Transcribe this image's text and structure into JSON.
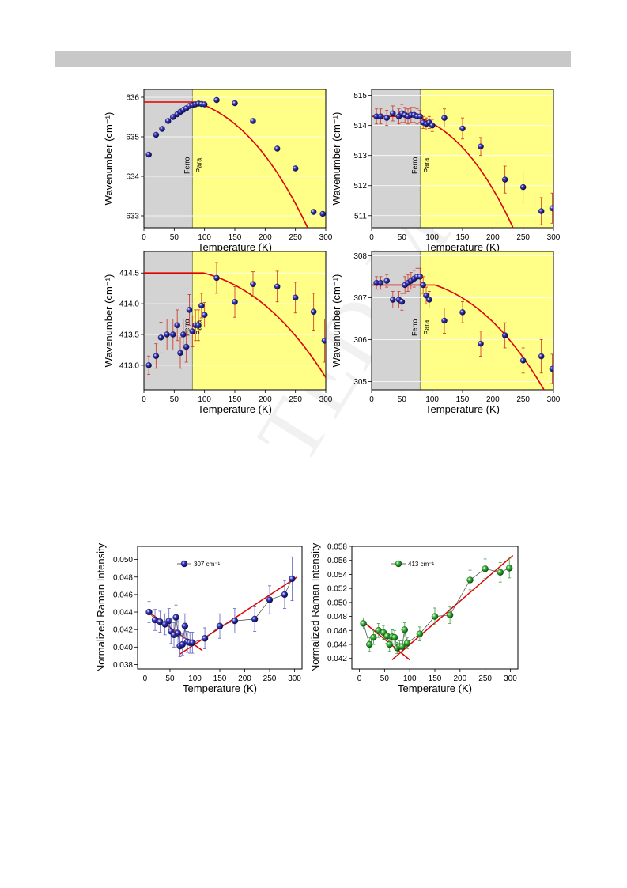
{
  "page": {
    "watermark": "TED M"
  },
  "chart_data": [
    {
      "type": "scatter",
      "panel": "top-left",
      "xlabel": "Temperature (K)",
      "ylabel": "Wavenumber (cm⁻¹)",
      "xlim": [
        0,
        300
      ],
      "ylim": [
        632.7,
        636.2
      ],
      "xticks": [
        0,
        50,
        100,
        150,
        200,
        250,
        300
      ],
      "yticks": [
        633,
        634,
        635,
        636
      ],
      "regions": {
        "boundary": 80,
        "left_label": "Ferro",
        "right_label": "Para",
        "left_color": "#d3d3d3",
        "right_color": "#ffff88"
      },
      "points": [
        {
          "x": 8,
          "y": 634.55,
          "err": 0
        },
        {
          "x": 20,
          "y": 635.05,
          "err": 0
        },
        {
          "x": 30,
          "y": 635.2,
          "err": 0
        },
        {
          "x": 40,
          "y": 635.4,
          "err": 0
        },
        {
          "x": 48,
          "y": 635.5,
          "err": 0
        },
        {
          "x": 55,
          "y": 635.57,
          "err": 0
        },
        {
          "x": 60,
          "y": 635.63,
          "err": 0
        },
        {
          "x": 65,
          "y": 635.68,
          "err": 0
        },
        {
          "x": 70,
          "y": 635.72,
          "err": 0
        },
        {
          "x": 75,
          "y": 635.78,
          "err": 0
        },
        {
          "x": 80,
          "y": 635.8,
          "err": 0
        },
        {
          "x": 85,
          "y": 635.82,
          "err": 0
        },
        {
          "x": 90,
          "y": 635.84,
          "err": 0
        },
        {
          "x": 95,
          "y": 635.83,
          "err": 0
        },
        {
          "x": 100,
          "y": 635.82,
          "err": 0
        },
        {
          "x": 120,
          "y": 635.93,
          "err": 0
        },
        {
          "x": 150,
          "y": 635.85,
          "err": 0
        },
        {
          "x": 180,
          "y": 635.4,
          "err": 0
        },
        {
          "x": 220,
          "y": 634.7,
          "err": 0
        },
        {
          "x": 250,
          "y": 634.2,
          "err": 0
        },
        {
          "x": 280,
          "y": 633.1,
          "err": 0
        },
        {
          "x": 295,
          "y": 633.05,
          "err": 0
        }
      ],
      "fit": {
        "x0": 636.05,
        "c": 4.4,
        "t": 480,
        "flat": 635.88
      }
    },
    {
      "type": "scatter",
      "panel": "top-right",
      "xlabel": "Temperature (K)",
      "ylabel": "Wavenumber (cm⁻¹)",
      "xlim": [
        0,
        300
      ],
      "ylim": [
        510.6,
        515.2
      ],
      "xticks": [
        0,
        50,
        100,
        150,
        200,
        250,
        300
      ],
      "yticks": [
        511,
        512,
        513,
        514,
        515
      ],
      "regions": {
        "boundary": 80,
        "left_label": "Ferro",
        "right_label": "Para",
        "left_color": "#d3d3d3",
        "right_color": "#ffff88"
      },
      "points": [
        {
          "x": 8,
          "y": 514.3,
          "err": 0.25
        },
        {
          "x": 15,
          "y": 514.3,
          "err": 0.25
        },
        {
          "x": 25,
          "y": 514.25,
          "err": 0.25
        },
        {
          "x": 35,
          "y": 514.4,
          "err": 0.25
        },
        {
          "x": 45,
          "y": 514.3,
          "err": 0.25
        },
        {
          "x": 50,
          "y": 514.4,
          "err": 0.3
        },
        {
          "x": 55,
          "y": 514.35,
          "err": 0.25
        },
        {
          "x": 60,
          "y": 514.3,
          "err": 0.25
        },
        {
          "x": 65,
          "y": 514.35,
          "err": 0.25
        },
        {
          "x": 70,
          "y": 514.35,
          "err": 0.25
        },
        {
          "x": 75,
          "y": 514.3,
          "err": 0.25
        },
        {
          "x": 80,
          "y": 514.3,
          "err": 0.2
        },
        {
          "x": 85,
          "y": 514.1,
          "err": 0.2
        },
        {
          "x": 90,
          "y": 514.05,
          "err": 0.2
        },
        {
          "x": 95,
          "y": 514.1,
          "err": 0.2
        },
        {
          "x": 100,
          "y": 514.0,
          "err": 0.2
        },
        {
          "x": 120,
          "y": 514.25,
          "err": 0.3
        },
        {
          "x": 150,
          "y": 513.9,
          "err": 0.35
        },
        {
          "x": 180,
          "y": 513.3,
          "err": 0.3
        },
        {
          "x": 220,
          "y": 512.2,
          "err": 0.45
        },
        {
          "x": 250,
          "y": 511.95,
          "err": 0.5
        },
        {
          "x": 280,
          "y": 511.15,
          "err": 0.45
        },
        {
          "x": 298,
          "y": 511.25,
          "err": 0.5
        }
      ],
      "fit": {
        "x0": 514.5,
        "c": 7.5,
        "t": 480,
        "flat": 514.3
      }
    },
    {
      "type": "scatter",
      "panel": "bottom-left",
      "xlabel": "Temperature (K)",
      "ylabel": "Wavenumber (cm⁻¹)",
      "xlim": [
        0,
        300
      ],
      "ylim": [
        412.6,
        414.85
      ],
      "xticks": [
        0,
        50,
        100,
        150,
        200,
        250,
        300
      ],
      "yticks": [
        413.0,
        413.5,
        414.0,
        414.5
      ],
      "regions": {
        "boundary": 80,
        "left_label": "Ferro",
        "right_label": "Para",
        "left_color": "#d3d3d3",
        "right_color": "#ffff88"
      },
      "points": [
        {
          "x": 8,
          "y": 413.0,
          "err": 0.15
        },
        {
          "x": 20,
          "y": 413.15,
          "err": 0.2
        },
        {
          "x": 28,
          "y": 413.45,
          "err": 0.25
        },
        {
          "x": 38,
          "y": 413.5,
          "err": 0.25
        },
        {
          "x": 48,
          "y": 413.5,
          "err": 0.25
        },
        {
          "x": 55,
          "y": 413.65,
          "err": 0.25
        },
        {
          "x": 60,
          "y": 413.2,
          "err": 0.25
        },
        {
          "x": 65,
          "y": 413.5,
          "err": 0.25
        },
        {
          "x": 70,
          "y": 413.3,
          "err": 0.25
        },
        {
          "x": 75,
          "y": 413.9,
          "err": 0.25
        },
        {
          "x": 80,
          "y": 413.55,
          "err": 0.25
        },
        {
          "x": 85,
          "y": 413.65,
          "err": 0.25
        },
        {
          "x": 90,
          "y": 413.65,
          "err": 0.25
        },
        {
          "x": 95,
          "y": 413.97,
          "err": 0.2
        },
        {
          "x": 100,
          "y": 413.82,
          "err": 0.2
        },
        {
          "x": 120,
          "y": 414.42,
          "err": 0.25
        },
        {
          "x": 150,
          "y": 414.03,
          "err": 0.25
        },
        {
          "x": 180,
          "y": 414.32,
          "err": 0.2
        },
        {
          "x": 220,
          "y": 414.28,
          "err": 0.25
        },
        {
          "x": 250,
          "y": 414.1,
          "err": 0.25
        },
        {
          "x": 280,
          "y": 413.87,
          "err": 0.3
        },
        {
          "x": 298,
          "y": 413.4,
          "err": 0.35
        }
      ],
      "fit": {
        "x0": 414.6,
        "c": 1.8,
        "t": 480,
        "flat": 414.5
      }
    },
    {
      "type": "scatter",
      "panel": "bottom-right",
      "xlabel": "Temperature (K)",
      "ylabel": "Wavenumber (cm⁻¹)",
      "xlim": [
        0,
        300
      ],
      "ylim": [
        304.8,
        308.1
      ],
      "xticks": [
        0,
        50,
        100,
        150,
        200,
        250,
        300
      ],
      "yticks": [
        305,
        306,
        307,
        308
      ],
      "regions": {
        "boundary": 80,
        "left_label": "Ferro",
        "right_label": "Para",
        "left_color": "#d3d3d3",
        "right_color": "#ffff88"
      },
      "points": [
        {
          "x": 8,
          "y": 307.35,
          "err": 0.15
        },
        {
          "x": 15,
          "y": 307.35,
          "err": 0.15
        },
        {
          "x": 25,
          "y": 307.4,
          "err": 0.15
        },
        {
          "x": 35,
          "y": 306.95,
          "err": 0.2
        },
        {
          "x": 45,
          "y": 306.95,
          "err": 0.2
        },
        {
          "x": 50,
          "y": 306.9,
          "err": 0.2
        },
        {
          "x": 55,
          "y": 307.3,
          "err": 0.2
        },
        {
          "x": 60,
          "y": 307.35,
          "err": 0.2
        },
        {
          "x": 65,
          "y": 307.4,
          "err": 0.2
        },
        {
          "x": 70,
          "y": 307.45,
          "err": 0.2
        },
        {
          "x": 75,
          "y": 307.5,
          "err": 0.2
        },
        {
          "x": 80,
          "y": 307.5,
          "err": 0.2
        },
        {
          "x": 85,
          "y": 307.3,
          "err": 0.2
        },
        {
          "x": 90,
          "y": 307.05,
          "err": 0.2
        },
        {
          "x": 95,
          "y": 306.95,
          "err": 0.2
        },
        {
          "x": 120,
          "y": 306.45,
          "err": 0.3
        },
        {
          "x": 150,
          "y": 306.65,
          "err": 0.25
        },
        {
          "x": 180,
          "y": 305.9,
          "err": 0.3
        },
        {
          "x": 220,
          "y": 306.1,
          "err": 0.3
        },
        {
          "x": 250,
          "y": 305.5,
          "err": 0.3
        },
        {
          "x": 280,
          "y": 305.6,
          "err": 0.4
        },
        {
          "x": 298,
          "y": 305.3,
          "err": 0.35
        }
      ],
      "fit": {
        "x0": 307.5,
        "c": 3.1,
        "t": 480,
        "flat": 307.3
      }
    },
    {
      "type": "line",
      "panel": "intensity-left",
      "xlabel": "Temperature (K)",
      "ylabel": "Normalized Raman Intensity",
      "xlim": [
        -15,
        315
      ],
      "ylim": [
        0.0375,
        0.0515
      ],
      "xticks": [
        0,
        50,
        100,
        150,
        200,
        250,
        300
      ],
      "yticks": [
        0.038,
        0.04,
        0.042,
        0.044,
        0.046,
        0.048,
        0.05
      ],
      "series": [
        {
          "name": "307 cm⁻¹",
          "color": "#1a1a8c"
        }
      ],
      "points": [
        {
          "x": 8,
          "y": 0.044,
          "err": 0.0012
        },
        {
          "x": 20,
          "y": 0.0431,
          "err": 0.0012
        },
        {
          "x": 30,
          "y": 0.0429,
          "err": 0.0012
        },
        {
          "x": 40,
          "y": 0.0426,
          "err": 0.0012
        },
        {
          "x": 48,
          "y": 0.043,
          "err": 0.0014
        },
        {
          "x": 52,
          "y": 0.0418,
          "err": 0.0014
        },
        {
          "x": 58,
          "y": 0.0414,
          "err": 0.0014
        },
        {
          "x": 62,
          "y": 0.0434,
          "err": 0.0014
        },
        {
          "x": 66,
          "y": 0.0416,
          "err": 0.0014
        },
        {
          "x": 70,
          "y": 0.0401,
          "err": 0.0012
        },
        {
          "x": 75,
          "y": 0.0403,
          "err": 0.0012
        },
        {
          "x": 80,
          "y": 0.0424,
          "err": 0.0014
        },
        {
          "x": 85,
          "y": 0.0406,
          "err": 0.0012
        },
        {
          "x": 90,
          "y": 0.0405,
          "err": 0.0012
        },
        {
          "x": 95,
          "y": 0.0405,
          "err": 0.0012
        },
        {
          "x": 120,
          "y": 0.041,
          "err": 0.0012
        },
        {
          "x": 150,
          "y": 0.0424,
          "err": 0.0014
        },
        {
          "x": 180,
          "y": 0.043,
          "err": 0.0014
        },
        {
          "x": 220,
          "y": 0.0432,
          "err": 0.0014
        },
        {
          "x": 250,
          "y": 0.0454,
          "err": 0.0016
        },
        {
          "x": 280,
          "y": 0.046,
          "err": 0.0016
        },
        {
          "x": 295,
          "y": 0.0478,
          "err": 0.0025
        }
      ],
      "fit_lines": [
        {
          "x1": 5,
          "y1": 0.0441,
          "x2": 115,
          "y2": 0.0396
        },
        {
          "x1": 70,
          "y1": 0.0392,
          "x2": 305,
          "y2": 0.048
        }
      ]
    },
    {
      "type": "line",
      "panel": "intensity-right",
      "xlabel": "Temperature (K)",
      "ylabel": "Normalized Raman Intensity",
      "xlim": [
        -15,
        315
      ],
      "ylim": [
        0.0405,
        0.058
      ],
      "xticks": [
        0,
        50,
        100,
        150,
        200,
        250,
        300
      ],
      "yticks": [
        0.042,
        0.044,
        0.046,
        0.048,
        0.05,
        0.052,
        0.054,
        0.056,
        0.058
      ],
      "series": [
        {
          "name": "413 cm⁻¹",
          "color": "#1e9e1e"
        }
      ],
      "points": [
        {
          "x": 8,
          "y": 0.047,
          "err": 0.0008
        },
        {
          "x": 20,
          "y": 0.044,
          "err": 0.001
        },
        {
          "x": 28,
          "y": 0.045,
          "err": 0.001
        },
        {
          "x": 38,
          "y": 0.046,
          "err": 0.001
        },
        {
          "x": 48,
          "y": 0.0457,
          "err": 0.001
        },
        {
          "x": 55,
          "y": 0.0452,
          "err": 0.001
        },
        {
          "x": 60,
          "y": 0.044,
          "err": 0.001
        },
        {
          "x": 65,
          "y": 0.0451,
          "err": 0.001
        },
        {
          "x": 70,
          "y": 0.045,
          "err": 0.001
        },
        {
          "x": 75,
          "y": 0.0435,
          "err": 0.0008
        },
        {
          "x": 80,
          "y": 0.0437,
          "err": 0.0008
        },
        {
          "x": 85,
          "y": 0.0437,
          "err": 0.0008
        },
        {
          "x": 90,
          "y": 0.0461,
          "err": 0.001
        },
        {
          "x": 95,
          "y": 0.0442,
          "err": 0.0008
        },
        {
          "x": 120,
          "y": 0.0455,
          "err": 0.001
        },
        {
          "x": 150,
          "y": 0.048,
          "err": 0.0012
        },
        {
          "x": 180,
          "y": 0.0482,
          "err": 0.0012
        },
        {
          "x": 220,
          "y": 0.0532,
          "err": 0.0014
        },
        {
          "x": 250,
          "y": 0.0548,
          "err": 0.0014
        },
        {
          "x": 280,
          "y": 0.0543,
          "err": 0.0014
        },
        {
          "x": 298,
          "y": 0.0549,
          "err": 0.0014
        }
      ],
      "fit_lines": [
        {
          "x1": 5,
          "y1": 0.0474,
          "x2": 100,
          "y2": 0.0418
        },
        {
          "x1": 65,
          "y1": 0.0418,
          "x2": 305,
          "y2": 0.0567
        }
      ]
    }
  ]
}
